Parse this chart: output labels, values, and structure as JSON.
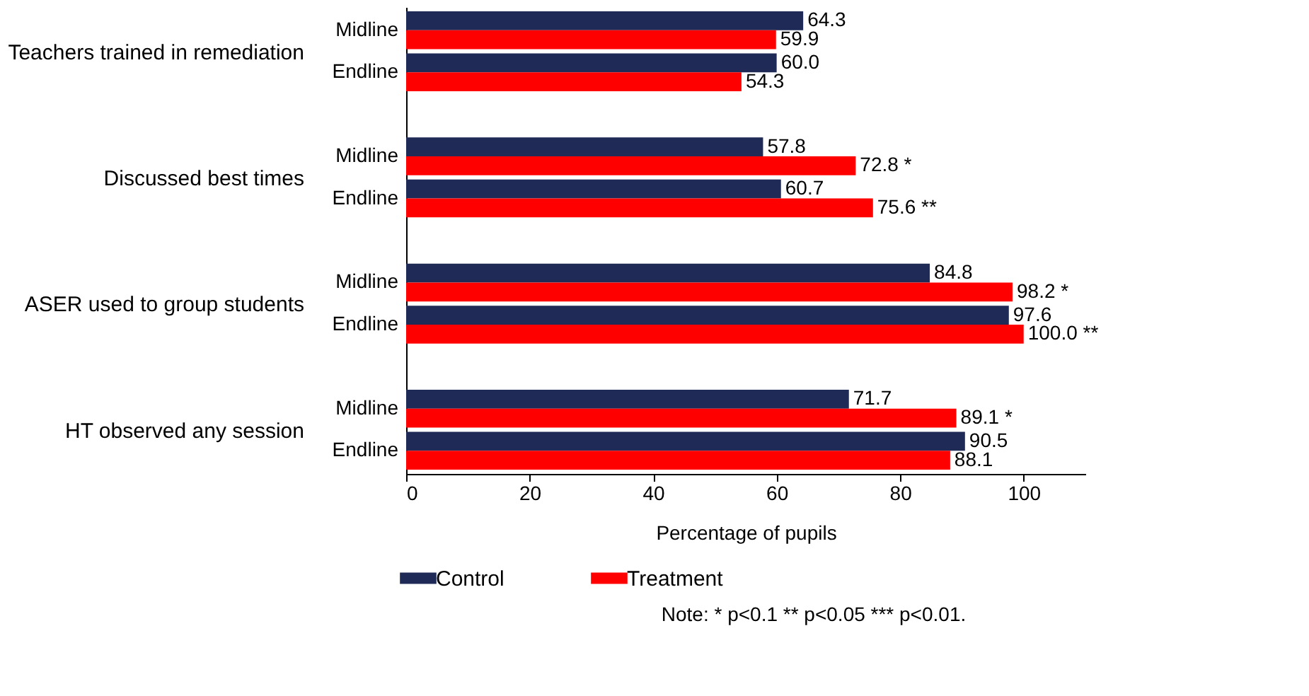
{
  "chart_data": {
    "type": "bar",
    "orientation": "horizontal",
    "categories": [
      "Midline",
      "Endline",
      "Midline",
      "Endline",
      "Midline",
      "Endline",
      "Midline",
      "Endline"
    ],
    "annotations": [
      "Teachers trained in remediation",
      "Discussed best times",
      "ASER used to group students",
      "HT observed any session",
      "Note: * p<0.1 ** p<0.05 *** p<0.01."
    ],
    "xlabel": "Percentage of pupils",
    "xlim": [
      0,
      110
    ],
    "xticks": [
      0,
      20,
      40,
      60,
      80,
      100
    ],
    "grid": false,
    "legend": "bottom",
    "series": [
      {
        "name": "Control",
        "color": "#1f2a56",
        "values": [
          64.3,
          60.0,
          57.8,
          60.7,
          84.8,
          97.6,
          71.7,
          90.5
        ],
        "value_labels": [
          "64.3",
          "60.0",
          "57.8",
          "60.7",
          "84.8",
          "97.6",
          "71.7",
          "90.5"
        ]
      },
      {
        "name": "Treatment",
        "color": "#ff0000",
        "values": [
          59.9,
          54.3,
          72.8,
          75.6,
          98.2,
          100.0,
          89.1,
          88.1
        ],
        "value_labels": [
          "59.9",
          "54.3",
          "72.8 *",
          "75.6 **",
          "98.2 *",
          "100.0 **",
          "89.1 *",
          "88.1"
        ]
      }
    ]
  }
}
